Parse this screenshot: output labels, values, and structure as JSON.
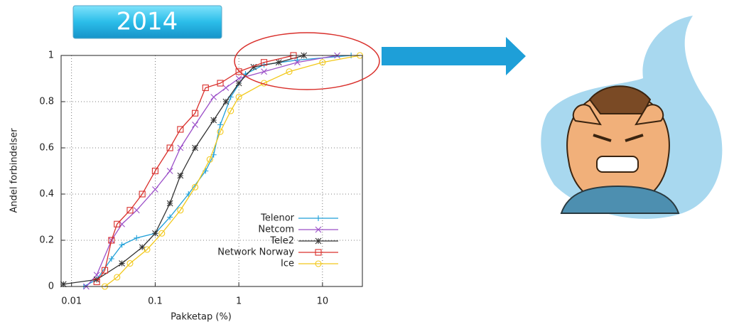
{
  "banner": "2014",
  "chart_data": {
    "type": "line",
    "xscale": "log",
    "grid": true,
    "legend": "lower right",
    "xlabel": "Pakketap (%)",
    "ylabel": "Andel forbindelser",
    "xlim": [
      0.0075,
      30
    ],
    "ylim": [
      0,
      1
    ],
    "xticks": [
      0.01,
      0.1,
      1,
      10
    ],
    "yticks": [
      0,
      0.2,
      0.4,
      0.6,
      0.8,
      1
    ],
    "series": [
      {
        "name": "Telenor",
        "color": "#1e9fd8",
        "marker": "plus",
        "x": [
          0.014,
          0.02,
          0.03,
          0.04,
          0.06,
          0.1,
          0.15,
          0.25,
          0.4,
          0.5,
          0.6,
          0.8,
          1.2,
          2,
          5,
          22
        ],
        "values": [
          0,
          0.03,
          0.12,
          0.18,
          0.21,
          0.23,
          0.3,
          0.4,
          0.5,
          0.57,
          0.7,
          0.82,
          0.92,
          0.96,
          0.98,
          1
        ]
      },
      {
        "name": "Netcom",
        "color": "#9b4fc8",
        "marker": "cross",
        "x": [
          0.015,
          0.02,
          0.03,
          0.04,
          0.06,
          0.1,
          0.15,
          0.2,
          0.3,
          0.5,
          0.7,
          1,
          2,
          5,
          15
        ],
        "values": [
          0,
          0.05,
          0.2,
          0.27,
          0.33,
          0.42,
          0.5,
          0.6,
          0.7,
          0.82,
          0.86,
          0.9,
          0.93,
          0.97,
          1
        ]
      },
      {
        "name": "Tele2",
        "color": "#333333",
        "marker": "star",
        "x": [
          0.008,
          0.02,
          0.04,
          0.07,
          0.1,
          0.15,
          0.2,
          0.3,
          0.5,
          0.7,
          1,
          1.5,
          3,
          6
        ],
        "values": [
          0.01,
          0.03,
          0.1,
          0.17,
          0.23,
          0.36,
          0.48,
          0.6,
          0.72,
          0.8,
          0.88,
          0.95,
          0.97,
          1
        ]
      },
      {
        "name": "Network Norway",
        "color": "#d9302c",
        "marker": "square",
        "x": [
          0.02,
          0.025,
          0.03,
          0.035,
          0.05,
          0.07,
          0.1,
          0.15,
          0.2,
          0.3,
          0.4,
          0.6,
          1,
          2,
          4.5
        ],
        "values": [
          0.02,
          0.07,
          0.2,
          0.27,
          0.33,
          0.4,
          0.5,
          0.6,
          0.68,
          0.75,
          0.86,
          0.88,
          0.93,
          0.97,
          1
        ]
      },
      {
        "name": "Ice",
        "color": "#f2c81a",
        "marker": "circle",
        "x": [
          0.025,
          0.035,
          0.05,
          0.08,
          0.12,
          0.2,
          0.3,
          0.45,
          0.6,
          0.8,
          1,
          2,
          4,
          10,
          28
        ],
        "values": [
          0,
          0.04,
          0.1,
          0.16,
          0.23,
          0.33,
          0.43,
          0.55,
          0.67,
          0.76,
          0.82,
          0.88,
          0.93,
          0.97,
          1
        ]
      }
    ]
  }
}
